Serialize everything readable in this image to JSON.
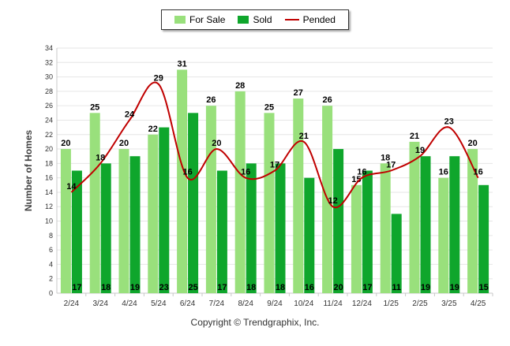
{
  "chart_data": {
    "type": "bar",
    "ylabel": "Number of Homes",
    "xlabel": "",
    "ylim": [
      0,
      34
    ],
    "ytick_step": 2,
    "grid": true,
    "legend_position": "top-center",
    "categories": [
      "2/24",
      "3/24",
      "4/24",
      "5/24",
      "6/24",
      "7/24",
      "8/24",
      "9/24",
      "10/24",
      "11/24",
      "12/24",
      "1/25",
      "2/25",
      "3/25",
      "4/25"
    ],
    "series": [
      {
        "name": "For Sale",
        "kind": "bar",
        "color": "#99e07c",
        "values": [
          20,
          25,
          20,
          22,
          31,
          26,
          28,
          25,
          27,
          26,
          15,
          18,
          21,
          16,
          20
        ]
      },
      {
        "name": "Sold",
        "kind": "bar",
        "color": "#0fa62c",
        "values": [
          17,
          18,
          19,
          23,
          25,
          17,
          18,
          18,
          16,
          20,
          17,
          11,
          19,
          19,
          15
        ]
      },
      {
        "name": "Pended",
        "kind": "line",
        "color": "#c00000",
        "values": [
          14,
          18,
          24,
          29,
          16,
          20,
          16,
          17,
          21,
          12,
          16,
          17,
          19,
          23,
          16
        ]
      }
    ]
  },
  "footer": {
    "copyright": "Copyright © Trendgraphix, Inc."
  }
}
